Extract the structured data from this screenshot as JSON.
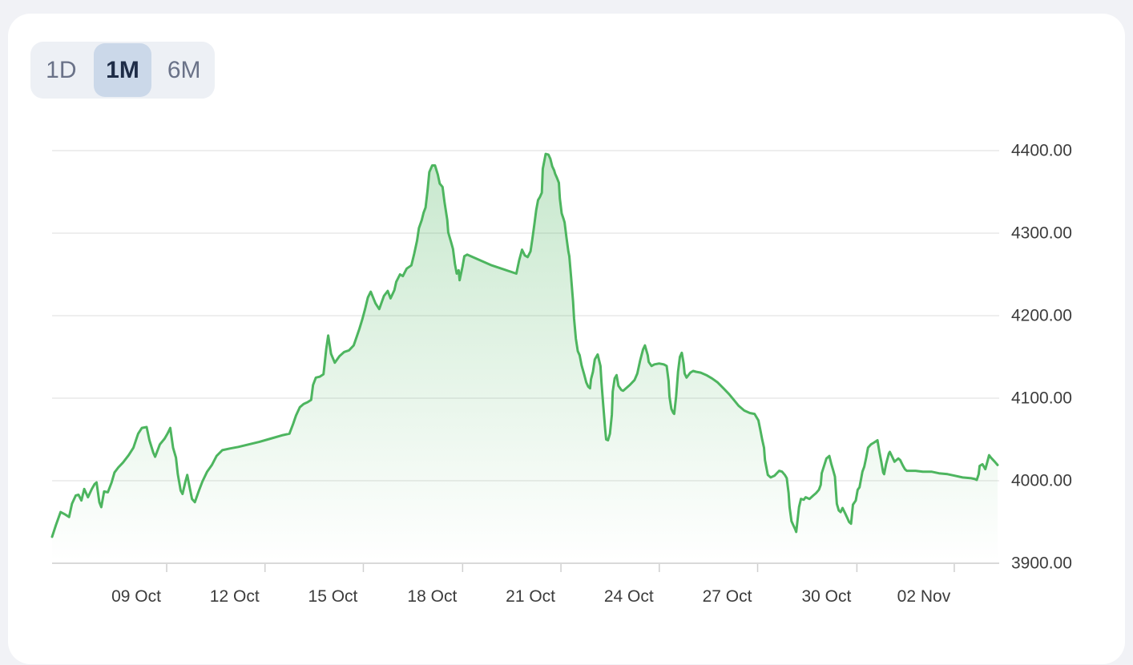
{
  "colors": {
    "page_bg": "#f1f2f6",
    "card_bg": "#ffffff",
    "range_group_bg": "#edf0f5",
    "range_selected_bg": "#cbd8e9",
    "range_selected_text": "#1e2c47",
    "range_text": "#6a7288",
    "line": "#4db55f",
    "fill": "#4db55f",
    "grid": "#e8e8e8",
    "axis": "#d9d9d9",
    "tick": "#cfcfcf",
    "label": "#3c3c3c"
  },
  "range_selector": {
    "options": [
      {
        "label": "1D",
        "selected": false
      },
      {
        "label": "1M",
        "selected": true
      },
      {
        "label": "6M",
        "selected": false
      }
    ]
  },
  "chart_data": {
    "type": "area",
    "title": "",
    "xlabel": "",
    "ylabel": "",
    "legend": "none",
    "grid": "horizontal",
    "y_axis_side": "right",
    "ylim": [
      3900,
      4425
    ],
    "y_ticks": [
      {
        "label": "4400.00",
        "value": 4400
      },
      {
        "label": "4300.00",
        "value": 4300
      },
      {
        "label": "4200.00",
        "value": 4200
      },
      {
        "label": "4100.00",
        "value": 4100
      },
      {
        "label": "4000.00",
        "value": 4000
      },
      {
        "label": "3900.00",
        "value": 3900
      }
    ],
    "x_ticks": [
      {
        "label": "09 Oct",
        "f": 0.089
      },
      {
        "label": "12 Oct",
        "f": 0.193
      },
      {
        "label": "15 Oct",
        "f": 0.297
      },
      {
        "label": "18 Oct",
        "f": 0.402
      },
      {
        "label": "21 Oct",
        "f": 0.506
      },
      {
        "label": "24 Oct",
        "f": 0.61
      },
      {
        "label": "27 Oct",
        "f": 0.714
      },
      {
        "label": "30 Oct",
        "f": 0.819
      },
      {
        "label": "02 Nov",
        "f": 0.922
      }
    ],
    "tick_mark_offset_f": 0.0322,
    "points": [
      [
        0.0,
        3932
      ],
      [
        0.004,
        3946
      ],
      [
        0.009,
        3962
      ],
      [
        0.014,
        3959
      ],
      [
        0.018,
        3956
      ],
      [
        0.021,
        3972
      ],
      [
        0.025,
        3982
      ],
      [
        0.028,
        3983
      ],
      [
        0.031,
        3976
      ],
      [
        0.034,
        3990
      ],
      [
        0.038,
        3980
      ],
      [
        0.042,
        3990
      ],
      [
        0.045,
        3996
      ],
      [
        0.047,
        3998
      ],
      [
        0.05,
        3974
      ],
      [
        0.052,
        3968
      ],
      [
        0.055,
        3987
      ],
      [
        0.059,
        3986
      ],
      [
        0.063,
        3998
      ],
      [
        0.066,
        4010
      ],
      [
        0.07,
        4016
      ],
      [
        0.075,
        4022
      ],
      [
        0.081,
        4031
      ],
      [
        0.086,
        4040
      ],
      [
        0.091,
        4057
      ],
      [
        0.095,
        4064
      ],
      [
        0.1,
        4065
      ],
      [
        0.103,
        4049
      ],
      [
        0.107,
        4034
      ],
      [
        0.109,
        4029
      ],
      [
        0.114,
        4044
      ],
      [
        0.119,
        4051
      ],
      [
        0.122,
        4057
      ],
      [
        0.125,
        4064
      ],
      [
        0.128,
        4040
      ],
      [
        0.131,
        4028
      ],
      [
        0.133,
        4008
      ],
      [
        0.136,
        3988
      ],
      [
        0.138,
        3984
      ],
      [
        0.141,
        3999
      ],
      [
        0.143,
        4007
      ],
      [
        0.146,
        3989
      ],
      [
        0.148,
        3978
      ],
      [
        0.151,
        3974
      ],
      [
        0.155,
        3987
      ],
      [
        0.159,
        3999
      ],
      [
        0.164,
        4011
      ],
      [
        0.169,
        4019
      ],
      [
        0.174,
        4030
      ],
      [
        0.18,
        4037
      ],
      [
        0.188,
        4039
      ],
      [
        0.197,
        4041
      ],
      [
        0.208,
        4044
      ],
      [
        0.219,
        4047
      ],
      [
        0.231,
        4051
      ],
      [
        0.243,
        4055
      ],
      [
        0.251,
        4057
      ],
      [
        0.255,
        4069
      ],
      [
        0.258,
        4079
      ],
      [
        0.262,
        4089
      ],
      [
        0.266,
        4093
      ],
      [
        0.27,
        4095
      ],
      [
        0.274,
        4098
      ],
      [
        0.276,
        4116
      ],
      [
        0.279,
        4125
      ],
      [
        0.283,
        4126
      ],
      [
        0.287,
        4129
      ],
      [
        0.29,
        4160
      ],
      [
        0.292,
        4176
      ],
      [
        0.295,
        4154
      ],
      [
        0.299,
        4143
      ],
      [
        0.304,
        4151
      ],
      [
        0.309,
        4156
      ],
      [
        0.314,
        4158
      ],
      [
        0.319,
        4164
      ],
      [
        0.322,
        4174
      ],
      [
        0.325,
        4184
      ],
      [
        0.328,
        4195
      ],
      [
        0.331,
        4208
      ],
      [
        0.334,
        4222
      ],
      [
        0.337,
        4229
      ],
      [
        0.342,
        4215
      ],
      [
        0.346,
        4208
      ],
      [
        0.351,
        4224
      ],
      [
        0.355,
        4230
      ],
      [
        0.358,
        4221
      ],
      [
        0.362,
        4231
      ],
      [
        0.364,
        4241
      ],
      [
        0.368,
        4250
      ],
      [
        0.371,
        4248
      ],
      [
        0.375,
        4257
      ],
      [
        0.38,
        4261
      ],
      [
        0.383,
        4275
      ],
      [
        0.386,
        4291
      ],
      [
        0.388,
        4306
      ],
      [
        0.391,
        4316
      ],
      [
        0.393,
        4325
      ],
      [
        0.395,
        4331
      ],
      [
        0.397,
        4351
      ],
      [
        0.399,
        4374
      ],
      [
        0.402,
        4382
      ],
      [
        0.405,
        4382
      ],
      [
        0.408,
        4371
      ],
      [
        0.41,
        4360
      ],
      [
        0.413,
        4356
      ],
      [
        0.415,
        4338
      ],
      [
        0.418,
        4316
      ],
      [
        0.419,
        4301
      ],
      [
        0.422,
        4289
      ],
      [
        0.424,
        4281
      ],
      [
        0.426,
        4263
      ],
      [
        0.428,
        4251
      ],
      [
        0.43,
        4255
      ],
      [
        0.431,
        4243
      ],
      [
        0.434,
        4259
      ],
      [
        0.436,
        4272
      ],
      [
        0.439,
        4274
      ],
      [
        0.445,
        4271
      ],
      [
        0.453,
        4267
      ],
      [
        0.465,
        4261
      ],
      [
        0.478,
        4256
      ],
      [
        0.491,
        4251
      ],
      [
        0.494,
        4267
      ],
      [
        0.497,
        4280
      ],
      [
        0.5,
        4273
      ],
      [
        0.503,
        4271
      ],
      [
        0.506,
        4278
      ],
      [
        0.508,
        4293
      ],
      [
        0.51,
        4310
      ],
      [
        0.512,
        4328
      ],
      [
        0.514,
        4340
      ],
      [
        0.516,
        4344
      ],
      [
        0.518,
        4349
      ],
      [
        0.519,
        4378
      ],
      [
        0.522,
        4396
      ],
      [
        0.525,
        4395
      ],
      [
        0.527,
        4390
      ],
      [
        0.529,
        4381
      ],
      [
        0.531,
        4376
      ],
      [
        0.532,
        4372
      ],
      [
        0.534,
        4367
      ],
      [
        0.536,
        4361
      ],
      [
        0.537,
        4342
      ],
      [
        0.539,
        4324
      ],
      [
        0.541,
        4317
      ],
      [
        0.542,
        4313
      ],
      [
        0.544,
        4295
      ],
      [
        0.546,
        4278
      ],
      [
        0.547,
        4272
      ],
      [
        0.549,
        4246
      ],
      [
        0.551,
        4217
      ],
      [
        0.552,
        4197
      ],
      [
        0.554,
        4172
      ],
      [
        0.556,
        4157
      ],
      [
        0.558,
        4152
      ],
      [
        0.56,
        4140
      ],
      [
        0.563,
        4128
      ],
      [
        0.565,
        4119
      ],
      [
        0.567,
        4114
      ],
      [
        0.569,
        4112
      ],
      [
        0.57,
        4123
      ],
      [
        0.572,
        4132
      ],
      [
        0.574,
        4147
      ],
      [
        0.577,
        4153
      ],
      [
        0.58,
        4139
      ],
      [
        0.581,
        4120
      ],
      [
        0.583,
        4091
      ],
      [
        0.585,
        4062
      ],
      [
        0.586,
        4050
      ],
      [
        0.588,
        4049
      ],
      [
        0.59,
        4057
      ],
      [
        0.592,
        4080
      ],
      [
        0.593,
        4108
      ],
      [
        0.595,
        4124
      ],
      [
        0.597,
        4128
      ],
      [
        0.599,
        4115
      ],
      [
        0.602,
        4110
      ],
      [
        0.604,
        4109
      ],
      [
        0.607,
        4112
      ],
      [
        0.611,
        4116
      ],
      [
        0.616,
        4122
      ],
      [
        0.619,
        4130
      ],
      [
        0.622,
        4146
      ],
      [
        0.625,
        4159
      ],
      [
        0.627,
        4164
      ],
      [
        0.63,
        4152
      ],
      [
        0.631,
        4144
      ],
      [
        0.634,
        4139
      ],
      [
        0.637,
        4141
      ],
      [
        0.642,
        4142
      ],
      [
        0.647,
        4141
      ],
      [
        0.65,
        4139
      ],
      [
        0.652,
        4121
      ],
      [
        0.653,
        4102
      ],
      [
        0.655,
        4087
      ],
      [
        0.657,
        4082
      ],
      [
        0.658,
        4081
      ],
      [
        0.66,
        4102
      ],
      [
        0.662,
        4132
      ],
      [
        0.664,
        4150
      ],
      [
        0.666,
        4155
      ],
      [
        0.668,
        4142
      ],
      [
        0.669,
        4130
      ],
      [
        0.671,
        4125
      ],
      [
        0.675,
        4131
      ],
      [
        0.678,
        4133
      ],
      [
        0.681,
        4132
      ],
      [
        0.686,
        4131
      ],
      [
        0.692,
        4128
      ],
      [
        0.698,
        4124
      ],
      [
        0.704,
        4119
      ],
      [
        0.71,
        4112
      ],
      [
        0.716,
        4105
      ],
      [
        0.721,
        4098
      ],
      [
        0.726,
        4091
      ],
      [
        0.732,
        4085
      ],
      [
        0.738,
        4082
      ],
      [
        0.743,
        4081
      ],
      [
        0.747,
        4073
      ],
      [
        0.749,
        4062
      ],
      [
        0.751,
        4050
      ],
      [
        0.753,
        4040
      ],
      [
        0.754,
        4025
      ],
      [
        0.757,
        4007
      ],
      [
        0.76,
        4004
      ],
      [
        0.764,
        4006
      ],
      [
        0.769,
        4012
      ],
      [
        0.772,
        4011
      ],
      [
        0.775,
        4007
      ],
      [
        0.777,
        4003
      ],
      [
        0.779,
        3985
      ],
      [
        0.78,
        3968
      ],
      [
        0.782,
        3951
      ],
      [
        0.784,
        3946
      ],
      [
        0.786,
        3941
      ],
      [
        0.787,
        3938
      ],
      [
        0.79,
        3968
      ],
      [
        0.792,
        3978
      ],
      [
        0.795,
        3977
      ],
      [
        0.797,
        3980
      ],
      [
        0.801,
        3978
      ],
      [
        0.805,
        3982
      ],
      [
        0.808,
        3985
      ],
      [
        0.811,
        3989
      ],
      [
        0.813,
        3995
      ],
      [
        0.814,
        4009
      ],
      [
        0.817,
        4020
      ],
      [
        0.819,
        4027
      ],
      [
        0.822,
        4030
      ],
      [
        0.824,
        4021
      ],
      [
        0.826,
        4013
      ],
      [
        0.828,
        4005
      ],
      [
        0.83,
        3972
      ],
      [
        0.832,
        3964
      ],
      [
        0.834,
        3962
      ],
      [
        0.836,
        3967
      ],
      [
        0.839,
        3960
      ],
      [
        0.841,
        3955
      ],
      [
        0.843,
        3950
      ],
      [
        0.845,
        3948
      ],
      [
        0.847,
        3971
      ],
      [
        0.85,
        3976
      ],
      [
        0.852,
        3989
      ],
      [
        0.854,
        3992
      ],
      [
        0.857,
        4011
      ],
      [
        0.859,
        4017
      ],
      [
        0.861,
        4028
      ],
      [
        0.863,
        4040
      ],
      [
        0.866,
        4044
      ],
      [
        0.869,
        4046
      ],
      [
        0.873,
        4049
      ],
      [
        0.875,
        4035
      ],
      [
        0.877,
        4023
      ],
      [
        0.879,
        4010
      ],
      [
        0.88,
        4008
      ],
      [
        0.882,
        4020
      ],
      [
        0.885,
        4033
      ],
      [
        0.886,
        4035
      ],
      [
        0.889,
        4028
      ],
      [
        0.891,
        4023
      ],
      [
        0.893,
        4025
      ],
      [
        0.895,
        4027
      ],
      [
        0.897,
        4025
      ],
      [
        0.9,
        4018
      ],
      [
        0.902,
        4014
      ],
      [
        0.904,
        4012
      ],
      [
        0.913,
        4012
      ],
      [
        0.921,
        4011
      ],
      [
        0.93,
        4011
      ],
      [
        0.938,
        4009
      ],
      [
        0.947,
        4008
      ],
      [
        0.955,
        4006
      ],
      [
        0.963,
        4004
      ],
      [
        0.972,
        4003
      ],
      [
        0.976,
        4002
      ],
      [
        0.978,
        4001
      ],
      [
        0.98,
        4008
      ],
      [
        0.981,
        4018
      ],
      [
        0.984,
        4020
      ],
      [
        0.986,
        4016
      ],
      [
        0.987,
        4014
      ],
      [
        0.989,
        4022
      ],
      [
        0.991,
        4031
      ],
      [
        0.993,
        4028
      ],
      [
        0.997,
        4023
      ],
      [
        1.0,
        4019
      ]
    ]
  }
}
